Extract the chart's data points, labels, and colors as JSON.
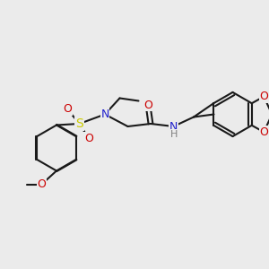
{
  "bg_color": "#ebebeb",
  "bond_color": "#1a1a1a",
  "bond_width": 1.5,
  "atom_colors": {
    "N": "#2020cc",
    "O": "#cc0000",
    "S": "#cccc00",
    "H": "#808080",
    "C": "#1a1a1a"
  },
  "font_size": 9,
  "font_size_small": 8
}
